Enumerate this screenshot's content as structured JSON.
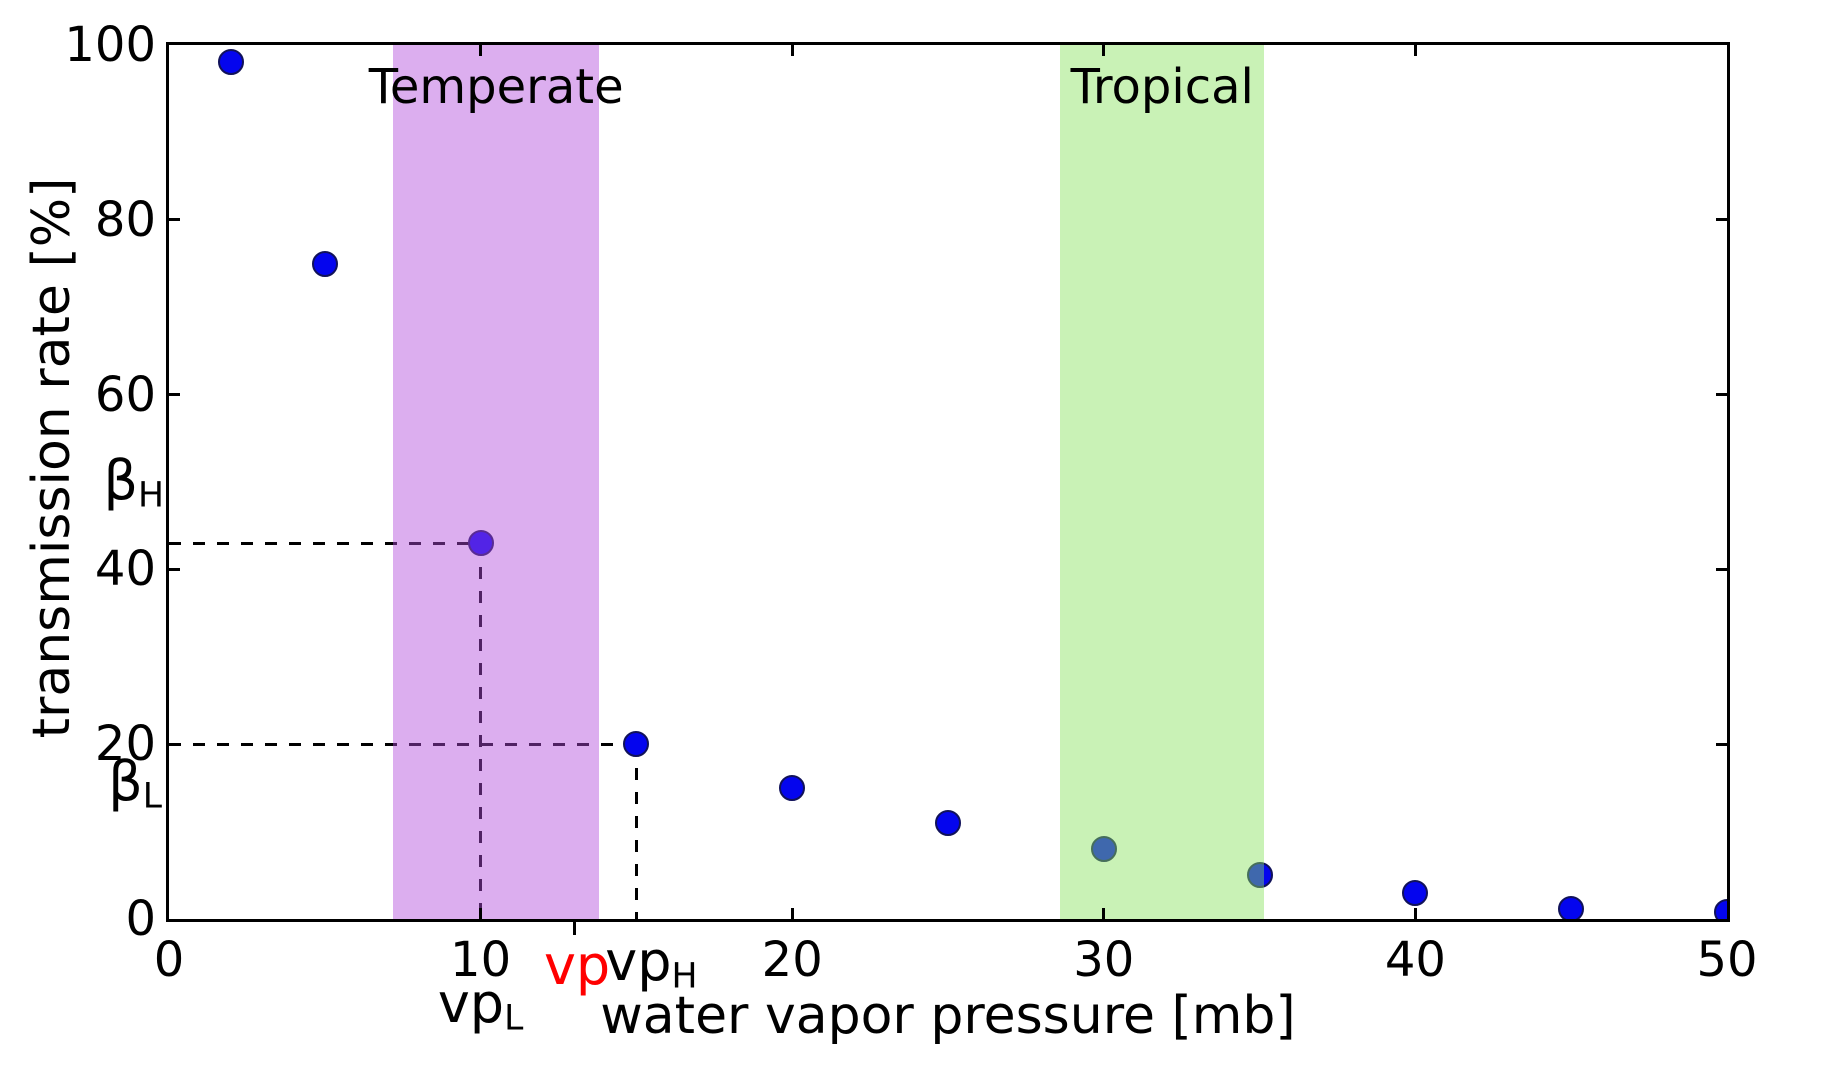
{
  "chart_data": {
    "type": "scatter",
    "title": "",
    "xlabel": "water vapor pressure [mb]",
    "ylabel": "transmission rate [%]",
    "xlim": [
      0,
      50
    ],
    "ylim": [
      0,
      100
    ],
    "x_ticks": [
      0,
      10,
      20,
      30,
      40,
      50
    ],
    "y_ticks": [
      0,
      20,
      40,
      60,
      80,
      100
    ],
    "grid": false,
    "legend": null,
    "marker": {
      "fill_color": "#0405ee",
      "edge_color": "#11125a"
    },
    "points": [
      {
        "x": 2,
        "y": 98
      },
      {
        "x": 5,
        "y": 75
      },
      {
        "x": 10,
        "y": 43
      },
      {
        "x": 15,
        "y": 20
      },
      {
        "x": 20,
        "y": 15
      },
      {
        "x": 25,
        "y": 11
      },
      {
        "x": 30,
        "y": 8
      },
      {
        "x": 35,
        "y": 5
      },
      {
        "x": 40,
        "y": 3
      },
      {
        "x": 45,
        "y": 1.2
      },
      {
        "x": 50,
        "y": 0.8
      }
    ],
    "bands": [
      {
        "id": "temperate",
        "label": "Temperate",
        "x_start": 7.2,
        "x_end": 13.8,
        "fill": "rgba(178,75,220,0.45)"
      },
      {
        "id": "tropical",
        "label": "Tropical",
        "x_start": 28.6,
        "x_end": 35.15,
        "fill": "rgba(135,226,93,0.45)"
      }
    ],
    "dashed_lines": [
      {
        "orient": "h",
        "y": 43,
        "x_from": 0,
        "x_to": 10
      },
      {
        "orient": "h",
        "y": 20,
        "x_from": 0,
        "x_to": 15
      },
      {
        "orient": "v",
        "x": 10,
        "y_from": 0,
        "y_to": 43
      },
      {
        "orient": "v",
        "x": 15,
        "y_from": 0,
        "y_to": 20
      }
    ],
    "annotations": [
      {
        "id": "beta-h",
        "text": "β",
        "sub": "H",
        "color": "#000000",
        "anchor": "y",
        "value": 43,
        "tick": false
      },
      {
        "id": "beta-l",
        "text": "β",
        "sub": "L",
        "color": "#000000",
        "anchor": "y",
        "value": 20,
        "tick": false
      },
      {
        "id": "vp-l",
        "text": "vp",
        "sub": "L",
        "color": "#000000",
        "anchor": "x",
        "value": 10,
        "tick": false
      },
      {
        "id": "vp",
        "text": "vp",
        "sub": "",
        "color": "#ff0000",
        "anchor": "x",
        "value": 13,
        "tick": true
      },
      {
        "id": "vp-h",
        "text": "vp",
        "sub": "H",
        "color": "#000000",
        "anchor": "x",
        "value": 15,
        "tick": false
      }
    ]
  }
}
